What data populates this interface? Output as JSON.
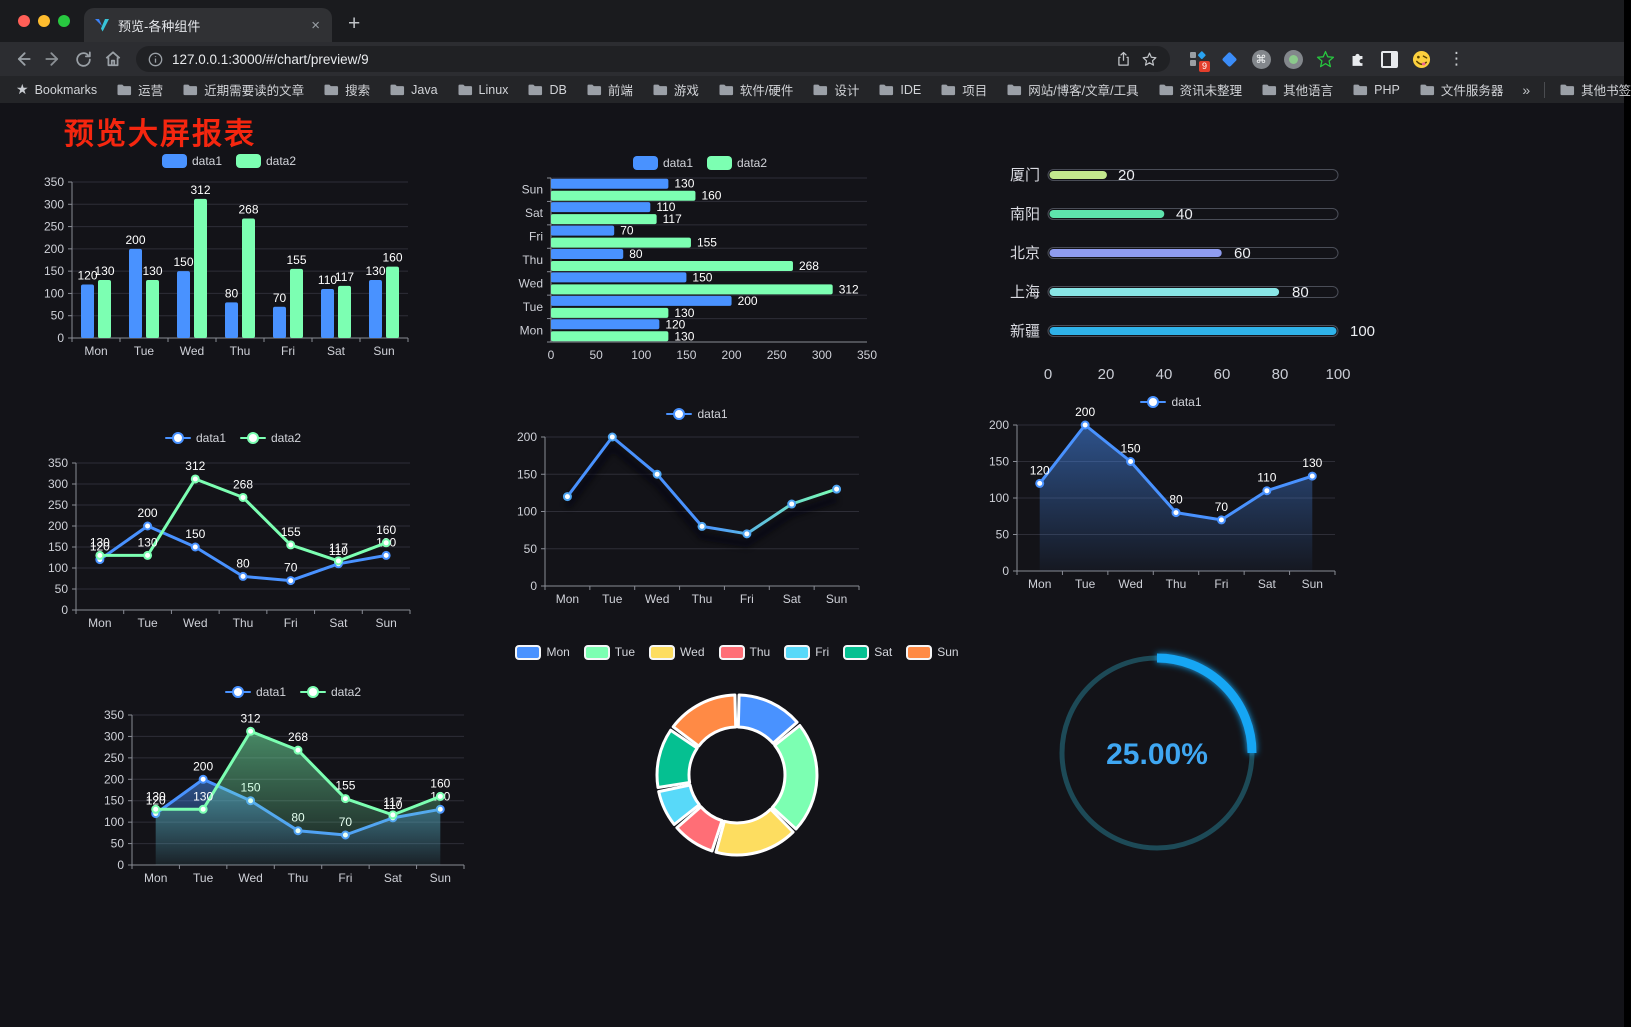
{
  "browser": {
    "traffic_lights": [
      "#ff5f57",
      "#febc2e",
      "#28c840"
    ],
    "tab": {
      "title": "预览-各种组件",
      "close_icon": "×",
      "new_tab_icon": "+"
    },
    "toolbar": {
      "url": "127.0.0.1:3000/#/chart/preview/9"
    },
    "extensions_badge": "9",
    "menu_icon": "⋮",
    "bookmarks_label": "Bookmarks",
    "bookmarks": [
      "运营",
      "近期需要读的文章",
      "搜索",
      "Java",
      "Linux",
      "DB",
      "前端",
      "游戏",
      "软件/硬件",
      "设计",
      "IDE",
      "项目",
      "网站/博客/文章/工具",
      "资讯未整理",
      "其他语言",
      "PHP",
      "文件服务器"
    ],
    "bookmarks_overflow": "»",
    "other_bookmarks": "其他书签"
  },
  "page": {
    "title": "预览大屏报表",
    "title_color": "#f5260f",
    "background": "#131318"
  },
  "chart_data": [
    {
      "id": "c1",
      "type": "bar",
      "title": "",
      "categories": [
        "Mon",
        "Tue",
        "Wed",
        "Thu",
        "Fri",
        "Sat",
        "Sun"
      ],
      "series": [
        {
          "name": "data1",
          "color": "#4992ff",
          "values": [
            120,
            200,
            150,
            80,
            70,
            110,
            130
          ]
        },
        {
          "name": "data2",
          "color": "#7cffb2",
          "values": [
            130,
            130,
            312,
            268,
            155,
            117,
            160
          ]
        }
      ],
      "ylim": [
        0,
        350
      ],
      "ytick": 50,
      "value_labels": true,
      "grid": true,
      "legend": {
        "marker": "bar",
        "position": "top",
        "items": [
          {
            "label": "data1",
            "color": "#4992ff"
          },
          {
            "label": "data2",
            "color": "#7cffb2"
          }
        ]
      }
    },
    {
      "id": "c2",
      "type": "hbar",
      "title": "",
      "categories": [
        "Mon",
        "Tue",
        "Wed",
        "Thu",
        "Fri",
        "Sat",
        "Sun"
      ],
      "display_order": "Sun at top, Mon at bottom",
      "series": [
        {
          "name": "data1",
          "color": "#4992ff",
          "values": [
            120,
            200,
            150,
            80,
            70,
            110,
            130
          ]
        },
        {
          "name": "data2",
          "color": "#7cffb2",
          "values": [
            130,
            130,
            312,
            268,
            155,
            117,
            160
          ]
        }
      ],
      "xlim": [
        0,
        350
      ],
      "xtick": 50,
      "value_labels": true,
      "grid": true,
      "legend": {
        "marker": "bar",
        "position": "top",
        "items": [
          {
            "label": "data1",
            "color": "#4992ff"
          },
          {
            "label": "data2",
            "color": "#7cffb2"
          }
        ]
      }
    },
    {
      "id": "c3",
      "type": "capsule",
      "title": "",
      "rows": [
        {
          "label": "厦门",
          "value": 20,
          "color": "#c3e88d"
        },
        {
          "label": "南阳",
          "value": 40,
          "color": "#5ee3ad"
        },
        {
          "label": "北京",
          "value": 60,
          "color": "#8f9cf0"
        },
        {
          "label": "上海",
          "value": 80,
          "color": "#89e6e6"
        },
        {
          "label": "新疆",
          "value": 100,
          "color": "#2fb2e9"
        }
      ],
      "xlim": [
        0,
        100
      ],
      "xticks": [
        0,
        20,
        40,
        60,
        80,
        100
      ]
    },
    {
      "id": "c4",
      "type": "line",
      "title": "",
      "categories": [
        "Mon",
        "Tue",
        "Wed",
        "Thu",
        "Fri",
        "Sat",
        "Sun"
      ],
      "series": [
        {
          "name": "data1",
          "color": "#4992ff",
          "values": [
            120,
            200,
            150,
            80,
            70,
            110,
            130
          ]
        },
        {
          "name": "data2",
          "color": "#7cffb2",
          "values": [
            130,
            130,
            312,
            268,
            155,
            117,
            160
          ]
        }
      ],
      "ylim": [
        0,
        350
      ],
      "ytick": 50,
      "value_labels": true,
      "markers": true,
      "grid": true,
      "legend": {
        "marker": "line",
        "position": "top",
        "items": [
          {
            "label": "data1",
            "color": "#4992ff"
          },
          {
            "label": "data2",
            "color": "#7cffb2"
          }
        ]
      }
    },
    {
      "id": "c5",
      "type": "line",
      "title": "",
      "categories": [
        "Mon",
        "Tue",
        "Wed",
        "Thu",
        "Fri",
        "Sat",
        "Sun"
      ],
      "series": [
        {
          "name": "data1",
          "gradient": [
            "#4992ff",
            "#4992ff",
            "#7cffb2"
          ],
          "color": "#4992ff",
          "values": [
            120,
            200,
            150,
            80,
            70,
            110,
            130
          ]
        }
      ],
      "ylim": [
        0,
        200
      ],
      "ytick": 50,
      "value_labels": false,
      "markers": true,
      "shadow": true,
      "grid": true,
      "legend": {
        "marker": "line",
        "position": "top",
        "items": [
          {
            "label": "data1",
            "color": "#4992ff"
          }
        ]
      }
    },
    {
      "id": "c6",
      "type": "line",
      "title": "",
      "categories": [
        "Mon",
        "Tue",
        "Wed",
        "Thu",
        "Fri",
        "Sat",
        "Sun"
      ],
      "series": [
        {
          "name": "data1",
          "color": "#4992ff",
          "values": [
            120,
            200,
            150,
            80,
            70,
            110,
            130
          ],
          "area": true
        }
      ],
      "ylim": [
        0,
        200
      ],
      "ytick": 50,
      "value_labels": true,
      "markers": true,
      "grid": true,
      "legend": {
        "marker": "line",
        "position": "top",
        "items": [
          {
            "label": "data1",
            "color": "#4992ff"
          }
        ]
      }
    },
    {
      "id": "c7",
      "type": "line",
      "title": "",
      "categories": [
        "Mon",
        "Tue",
        "Wed",
        "Thu",
        "Fri",
        "Sat",
        "Sun"
      ],
      "series": [
        {
          "name": "data1",
          "color": "#4992ff",
          "values": [
            120,
            200,
            150,
            80,
            70,
            110,
            130
          ],
          "area": true
        },
        {
          "name": "data2",
          "color": "#7cffb2",
          "values": [
            130,
            130,
            312,
            268,
            155,
            117,
            160
          ],
          "area": true
        }
      ],
      "ylim": [
        0,
        350
      ],
      "ytick": 50,
      "value_labels": true,
      "markers": true,
      "grid": true,
      "legend": {
        "marker": "line",
        "position": "top",
        "items": [
          {
            "label": "data1",
            "color": "#4992ff"
          },
          {
            "label": "data2",
            "color": "#7cffb2"
          }
        ]
      }
    },
    {
      "id": "c8",
      "type": "pie",
      "title": "",
      "categories": [
        "Mon",
        "Tue",
        "Wed",
        "Thu",
        "Fri",
        "Sat",
        "Sun"
      ],
      "values": [
        120,
        200,
        150,
        80,
        70,
        110,
        130
      ],
      "colors": [
        "#4992ff",
        "#7cffb2",
        "#fddd60",
        "#ff6e76",
        "#58d9f9",
        "#05c091",
        "#ff8a45"
      ],
      "inner_radius_ratio": 0.6,
      "start_angle": -90,
      "direction": "clockwise",
      "legend": {
        "marker": "pie",
        "position": "top",
        "items": [
          {
            "label": "Mon",
            "color": "#4992ff"
          },
          {
            "label": "Tue",
            "color": "#7cffb2"
          },
          {
            "label": "Wed",
            "color": "#fddd60"
          },
          {
            "label": "Thu",
            "color": "#ff6e76"
          },
          {
            "label": "Fri",
            "color": "#58d9f9"
          },
          {
            "label": "Sat",
            "color": "#05c091"
          },
          {
            "label": "Sun",
            "color": "#ff8a45"
          }
        ]
      }
    },
    {
      "id": "c9",
      "type": "gauge",
      "title": "",
      "value": 25,
      "max": 100,
      "label": "25.00%",
      "color": "#16a6f4",
      "track_color": "#1d4a57",
      "text_color": "#3fa7f2"
    }
  ]
}
